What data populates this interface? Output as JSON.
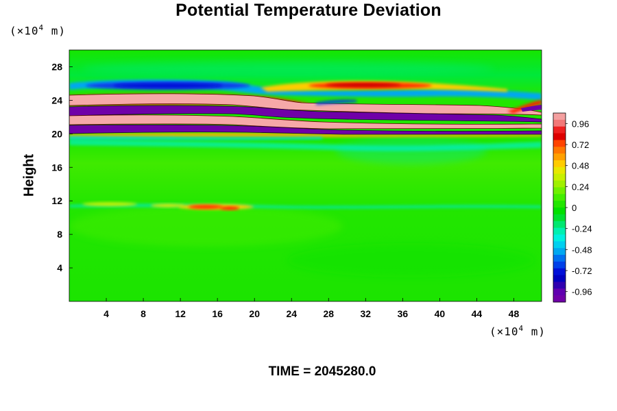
{
  "chart_data": {
    "type": "heatmap",
    "title": "Potential Temperature Deviation",
    "xlabel": "",
    "ylabel": "Height",
    "x_unit": {
      "prefix": "(×10",
      "exp": "4",
      "suffix": " m)"
    },
    "y_unit": {
      "prefix": "(×10",
      "exp": "4",
      "suffix": " m)"
    },
    "xlim": [
      0,
      51
    ],
    "ylim": [
      0,
      30
    ],
    "x_ticks": [
      "4",
      "8",
      "12",
      "16",
      "20",
      "24",
      "28",
      "32",
      "36",
      "40",
      "44",
      "48"
    ],
    "y_ticks": [
      "4",
      "8",
      "12",
      "16",
      "20",
      "24",
      "28"
    ],
    "colorbar": {
      "range": [
        -1.08,
        1.08
      ],
      "labels": [
        "0.96",
        "0.72",
        "0.48",
        "0.24",
        "0",
        "-0.24",
        "-0.48",
        "-0.72",
        "-0.96"
      ],
      "colors_top_to_bottom": [
        "#f4a0a0",
        "#f27878",
        "#ee2020",
        "#dd0000",
        "#ff4400",
        "#ff7700",
        "#ffa000",
        "#ffcc00",
        "#e8e800",
        "#c8f000",
        "#a0f000",
        "#70f000",
        "#44ee00",
        "#22e600",
        "#00e000",
        "#00e030",
        "#00e870",
        "#00f0b0",
        "#00f0e0",
        "#00d0f0",
        "#00a8f0",
        "#0070f0",
        "#0040e8",
        "#0010d8",
        "#0000c0",
        "#3000b0",
        "#6000b0",
        "#7000a8"
      ]
    },
    "field_description_bands": [
      {
        "height": 28,
        "value": 0.0
      },
      {
        "height": 25.8,
        "value": -0.7
      },
      {
        "height": 25.8,
        "value": 0.7
      },
      {
        "height": 24.4,
        "value": 1.0
      },
      {
        "height": 22.9,
        "value": -1.0
      },
      {
        "height": 21.7,
        "value": 1.0
      },
      {
        "height": 20.7,
        "value": -1.0
      },
      {
        "height": 19.8,
        "value": -0.3
      },
      {
        "height": 11.3,
        "value": 0.5
      }
    ],
    "footer": "TIME = 2045280.0"
  }
}
